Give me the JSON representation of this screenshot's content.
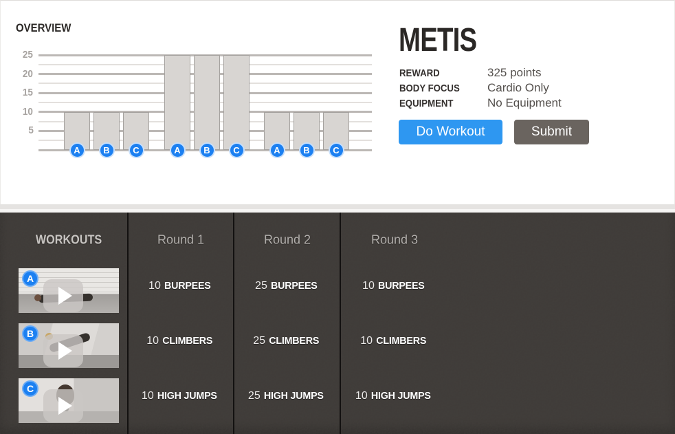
{
  "overview": {
    "title": "OVERVIEW"
  },
  "workout": {
    "title": "METIS",
    "details": [
      {
        "label": "REWARD",
        "value": "325 points"
      },
      {
        "label": "BODY FOCUS",
        "value": "Cardio Only"
      },
      {
        "label": "EQUIPMENT",
        "value": "No Equipment"
      }
    ],
    "actions": {
      "do_workout": "Do Workout",
      "submit": "Submit"
    }
  },
  "chart_data": {
    "type": "bar",
    "title": "OVERVIEW",
    "categories": [
      "A",
      "B",
      "C"
    ],
    "groups": [
      "Round 1",
      "Round 2",
      "Round 3"
    ],
    "series": [
      {
        "name": "Round 1",
        "values": [
          10,
          10,
          10
        ]
      },
      {
        "name": "Round 2",
        "values": [
          25,
          25,
          25
        ]
      },
      {
        "name": "Round 3",
        "values": [
          10,
          10,
          10
        ]
      }
    ],
    "xlabel": "",
    "ylabel": "",
    "ylim": [
      0,
      25
    ],
    "yticks": [
      5,
      10,
      15,
      20,
      25
    ],
    "grid": true,
    "legend": false,
    "bar_color": "#d8d5d2",
    "badge_color": "#1c80f1"
  },
  "rounds_table": {
    "header": "WORKOUTS",
    "columns": [
      "Round 1",
      "Round 2",
      "Round 3"
    ],
    "exercises": [
      {
        "letter": "A",
        "name": "BURPEES",
        "reps": [
          "10",
          "25",
          "10"
        ]
      },
      {
        "letter": "B",
        "name": "CLIMBERS",
        "reps": [
          "10",
          "25",
          "10"
        ]
      },
      {
        "letter": "C",
        "name": "HIGH JUMPS",
        "reps": [
          "10",
          "25",
          "10"
        ]
      }
    ]
  },
  "colors": {
    "accent_blue": "#2e97f1",
    "badge_blue": "#1c80f1",
    "submit_gray": "#6a645f",
    "dark_bg": "#3e3a37",
    "bar_fill": "#d8d5d2"
  }
}
